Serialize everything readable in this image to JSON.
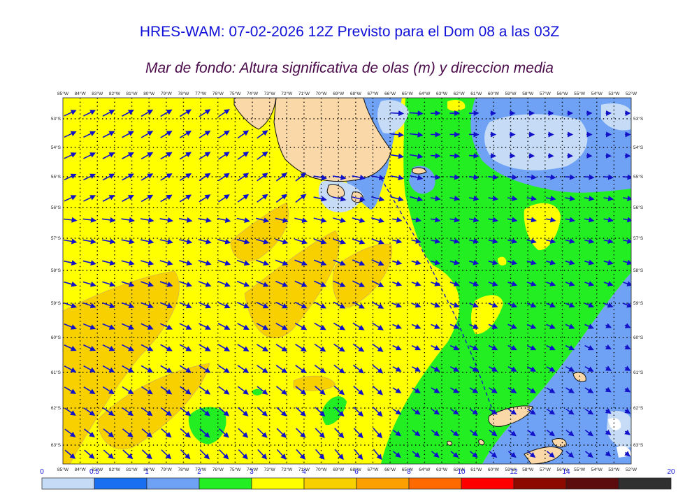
{
  "title": "HRES-WAM: 07-02-2026 12Z Previsto para el Dom 08 a las 03Z",
  "subtitle": "Mar de fondo: Altura significativa de olas (m) y direccion media",
  "lon_labels": [
    "85°W",
    "84°W",
    "83°W",
    "82°W",
    "81°W",
    "80°W",
    "79°W",
    "78°W",
    "77°W",
    "76°W",
    "75°W",
    "74°W",
    "73°W",
    "72°W",
    "71°W",
    "70°W",
    "69°W",
    "68°W",
    "67°W",
    "66°W",
    "65°W",
    "64°W",
    "63°W",
    "62°W",
    "61°W",
    "60°W",
    "59°W",
    "58°W",
    "57°W",
    "56°W",
    "55°W",
    "54°W",
    "53°W",
    "52°W"
  ],
  "lat_labels": [
    "53°S",
    "54°S",
    "55°S",
    "56°S",
    "57°S",
    "58°S",
    "59°S",
    "60°S",
    "61°S",
    "62°S",
    "63°S"
  ],
  "colorbar": {
    "ticks": [
      "0",
      "0.5",
      "1",
      "2",
      "3",
      "4",
      "6",
      "8",
      "10",
      "12",
      "14",
      "20"
    ],
    "colors": [
      "#c6dcf6",
      "#1a6ef0",
      "#6fa2f4",
      "#22ee22",
      "#ffff00",
      "#f8d000",
      "#fba000",
      "#ff6a00",
      "#ff0000",
      "#8c0a00",
      "#5c0c0c",
      "#303030"
    ]
  },
  "palette": {
    "land": "#fbd8a8",
    "arrow": "#1212c8",
    "grid": "#000000"
  }
}
